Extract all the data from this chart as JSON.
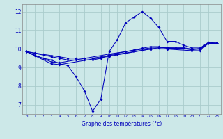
{
  "xlabel": "Graphe des températures (°c)",
  "bg_color": "#cce8e8",
  "grid_color": "#aacccc",
  "line_color": "#0000bb",
  "xlim": [
    -0.5,
    23.5
  ],
  "ylim": [
    6.5,
    12.4
  ],
  "yticks": [
    7,
    8,
    9,
    10,
    11,
    12
  ],
  "xticks": [
    0,
    1,
    2,
    3,
    4,
    5,
    6,
    7,
    8,
    9,
    10,
    11,
    12,
    13,
    14,
    15,
    16,
    17,
    18,
    19,
    20,
    21,
    22,
    23
  ],
  "line1_x": [
    0,
    1,
    2,
    3,
    4,
    5,
    6,
    7,
    8,
    9,
    10,
    11,
    12,
    13,
    14,
    15,
    16,
    17,
    18,
    19,
    20,
    21,
    22,
    23
  ],
  "line1_y": [
    9.85,
    9.65,
    9.5,
    9.4,
    9.2,
    9.1,
    8.5,
    7.75,
    6.65,
    7.3,
    9.85,
    10.5,
    11.4,
    11.7,
    12.0,
    11.65,
    11.15,
    10.4,
    10.4,
    10.2,
    10.05,
    10.05,
    10.35,
    10.3
  ],
  "line2_x": [
    0,
    1,
    2,
    3,
    4,
    5,
    6,
    7,
    8,
    9,
    10,
    11,
    12,
    13,
    14,
    15,
    16,
    17,
    18,
    19,
    20,
    21,
    22,
    23
  ],
  "line2_y": [
    9.85,
    9.78,
    9.71,
    9.64,
    9.57,
    9.5,
    9.5,
    9.5,
    9.5,
    9.57,
    9.64,
    9.71,
    9.78,
    9.85,
    9.92,
    9.99,
    10.06,
    10.06,
    10.06,
    10.06,
    9.99,
    9.99,
    10.3,
    10.3
  ],
  "line3_x": [
    0,
    1,
    2,
    3,
    4,
    5,
    6,
    7,
    8,
    9,
    10,
    11,
    12,
    13,
    14,
    15,
    16,
    17,
    18,
    19,
    20,
    21,
    22,
    23
  ],
  "line3_y": [
    9.85,
    9.76,
    9.67,
    9.58,
    9.49,
    9.4,
    9.4,
    9.4,
    9.4,
    9.49,
    9.67,
    9.76,
    9.85,
    9.94,
    10.03,
    10.12,
    10.12,
    10.03,
    10.03,
    10.03,
    9.94,
    10.03,
    10.3,
    10.3
  ],
  "line4_x": [
    0,
    3,
    4,
    10,
    15,
    17,
    20,
    21,
    22,
    23
  ],
  "line4_y": [
    9.85,
    9.3,
    9.25,
    9.72,
    10.05,
    10.05,
    9.98,
    9.98,
    10.3,
    10.3
  ],
  "line5_x": [
    0,
    3,
    4,
    10,
    15,
    17,
    20,
    21,
    22,
    23
  ],
  "line5_y": [
    9.85,
    9.2,
    9.15,
    9.6,
    9.99,
    9.99,
    9.9,
    9.9,
    10.3,
    10.3
  ]
}
